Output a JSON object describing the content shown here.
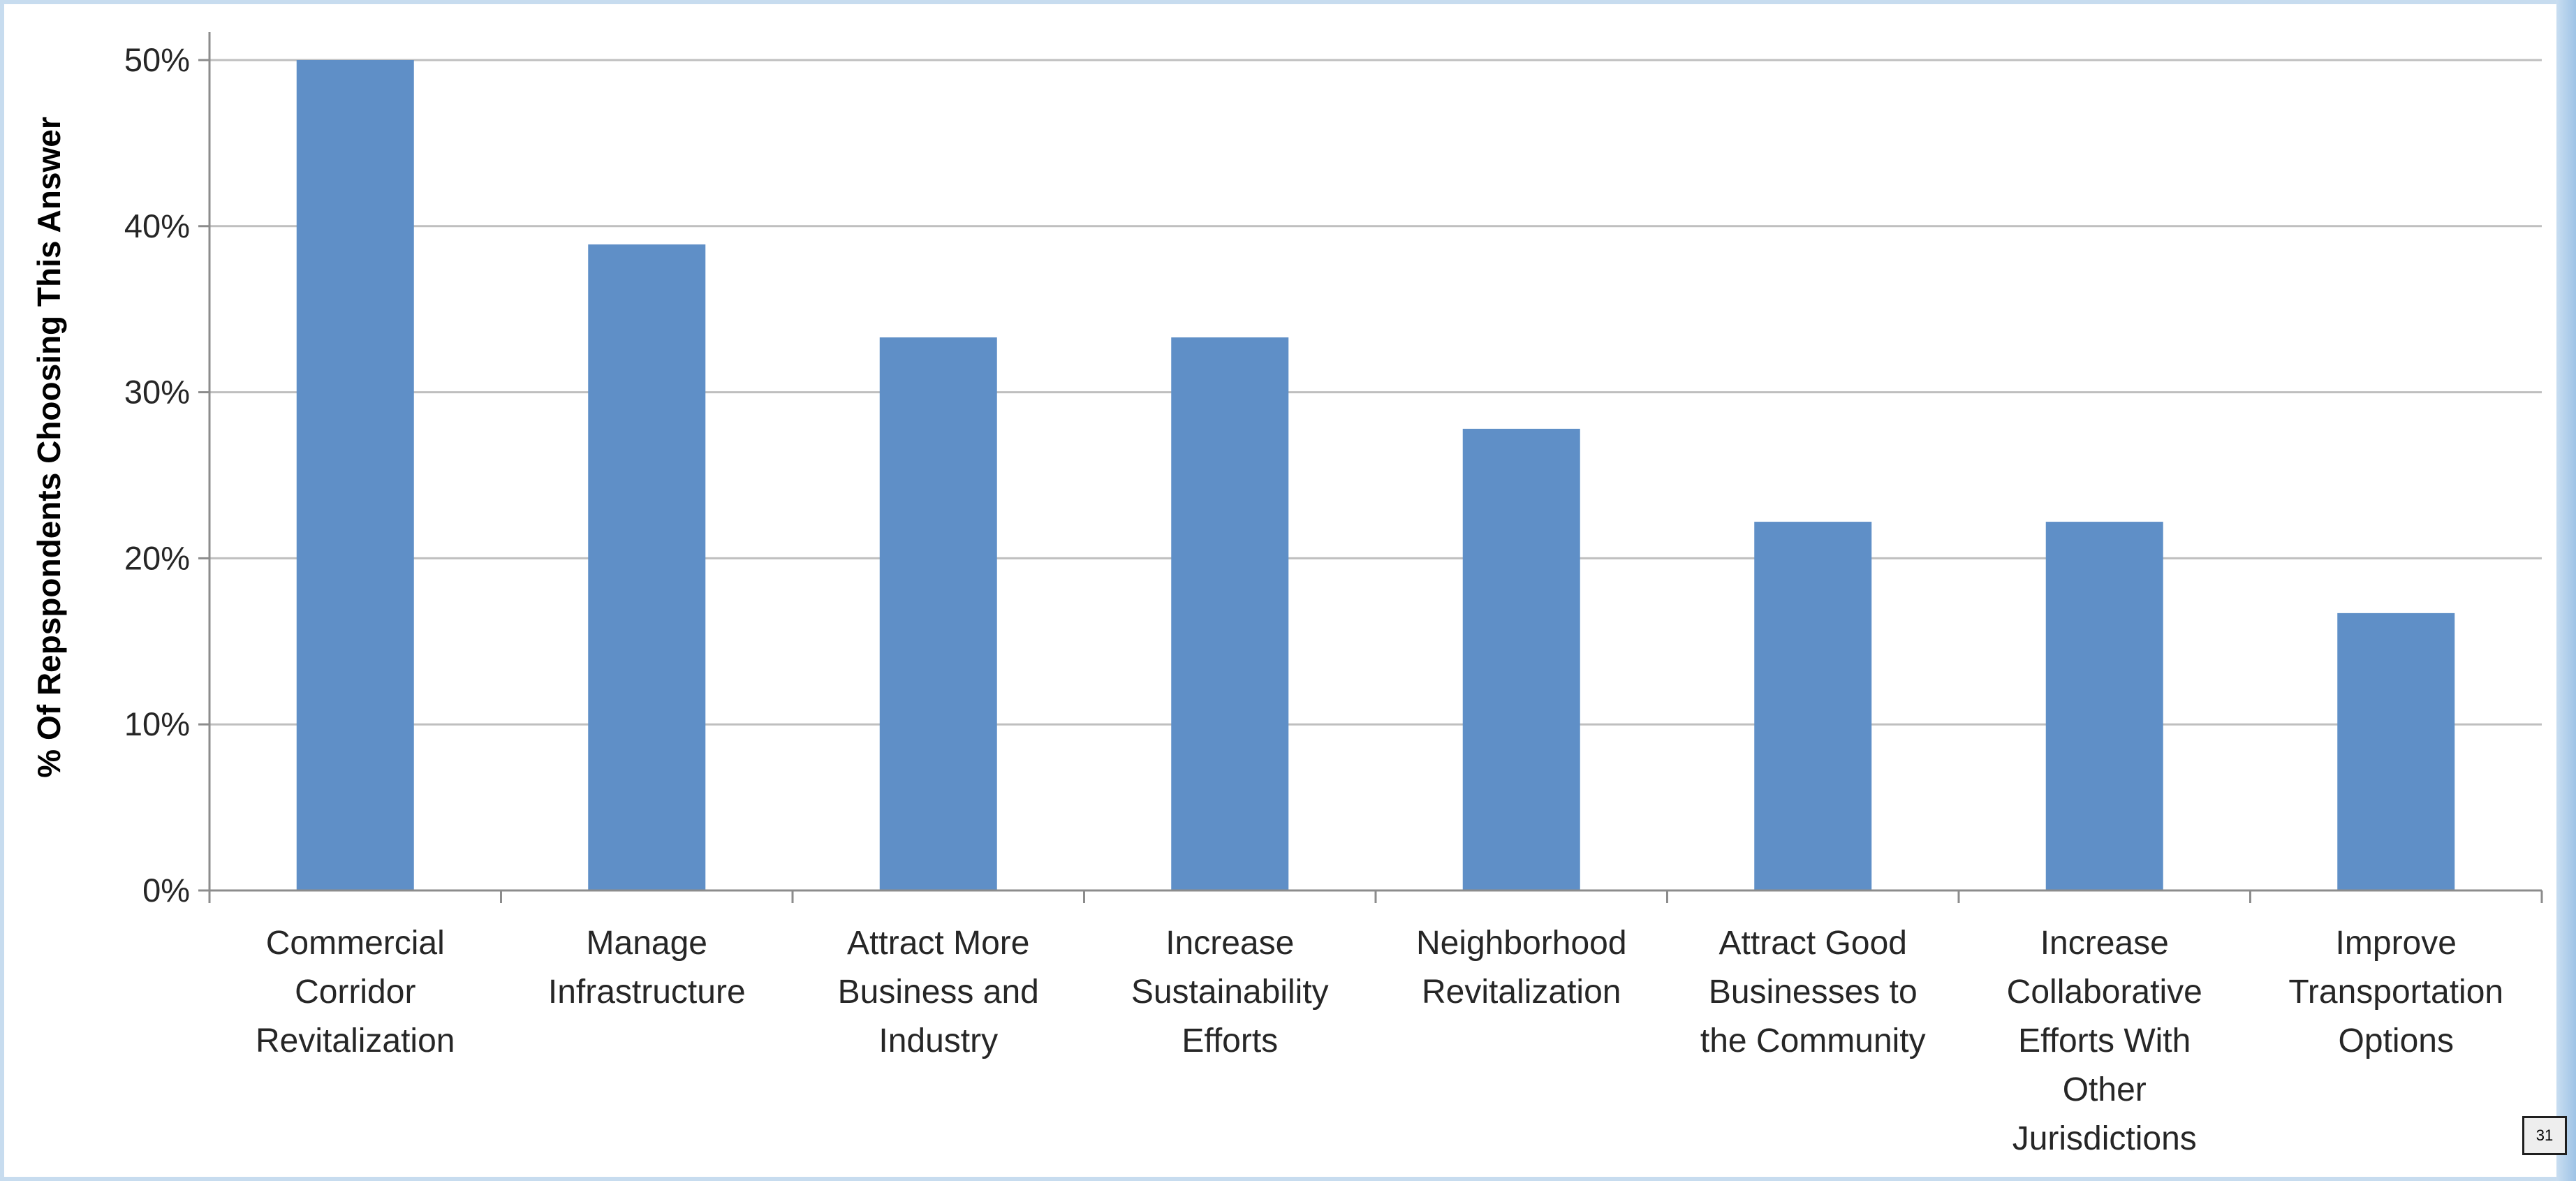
{
  "chart_data": {
    "type": "bar",
    "title": "",
    "xlabel": "",
    "ylabel": "% Of Repspondents Choosing This Answer",
    "ylim": [
      0,
      50
    ],
    "yticks": [
      "0%",
      "10%",
      "20%",
      "30%",
      "40%",
      "50%"
    ],
    "grid": true,
    "legend": "none",
    "bar_color": "#5f8fc7",
    "categories": [
      [
        "Commercial",
        "Corridor",
        "Revitalization"
      ],
      [
        "Manage",
        "Infrastructure"
      ],
      [
        "Attract More",
        "Business and",
        "Industry"
      ],
      [
        "Increase",
        "Sustainability",
        "Efforts"
      ],
      [
        "Neighborhood",
        "Revitalization"
      ],
      [
        "Attract Good",
        "Businesses to",
        "the Community"
      ],
      [
        "Increase",
        "Collaborative",
        "Efforts With",
        "Other",
        "Jurisdictions"
      ],
      [
        "Improve",
        "Transportation",
        "Options"
      ]
    ],
    "values": [
      50.0,
      38.9,
      33.3,
      33.3,
      27.8,
      22.2,
      22.2,
      16.7
    ]
  },
  "slide": {
    "page_number": "31"
  }
}
